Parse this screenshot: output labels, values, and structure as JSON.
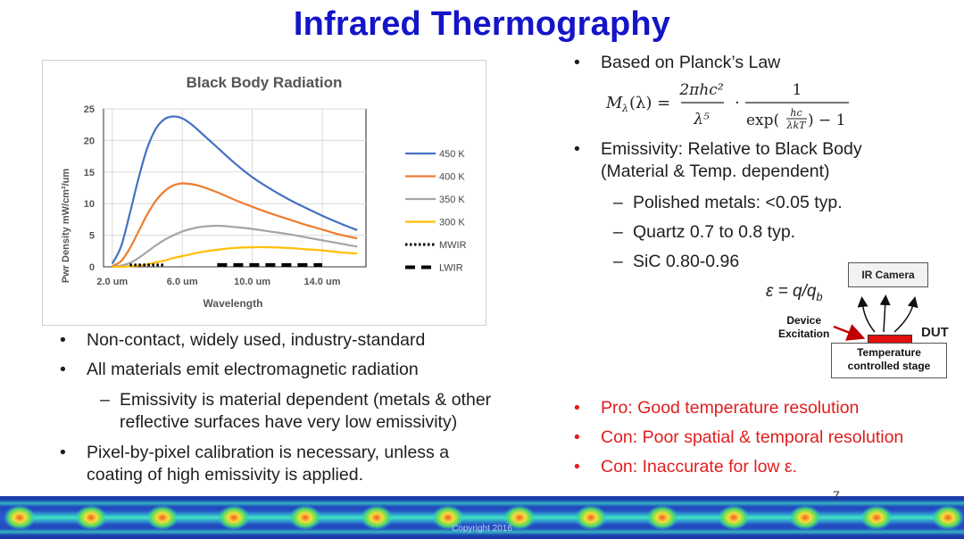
{
  "title": "Infrared Thermography",
  "chart_data": {
    "type": "line",
    "title": "Black Body Radiation",
    "xlabel": "Wavelength",
    "ylabel": "Pwr Density mW/cm²/um",
    "x_tick_labels": [
      "2.0 um",
      "6.0 um",
      "10.0 um",
      "14.0 um"
    ],
    "x_ticks": [
      2,
      6,
      10,
      14
    ],
    "xlim": [
      1.5,
      16.5
    ],
    "ylim": [
      0,
      25
    ],
    "y_ticks": [
      0,
      5,
      10,
      15,
      20,
      25
    ],
    "grid": true,
    "legend_position": "right",
    "x": [
      2.0,
      2.5,
      3.0,
      3.5,
      4.0,
      4.5,
      5.0,
      5.5,
      6.0,
      6.5,
      7.0,
      8.0,
      9.0,
      10.0,
      11.0,
      12.0,
      13.0,
      14.0,
      15.0,
      16.0
    ],
    "series": [
      {
        "name": "450 K",
        "color": "#4472c4",
        "values": [
          0.5,
          3.2,
          8.4,
          14.0,
          18.8,
          21.9,
          23.4,
          23.8,
          23.5,
          22.6,
          21.4,
          18.9,
          16.4,
          14.2,
          12.4,
          10.8,
          9.4,
          8.1,
          6.9,
          5.8
        ]
      },
      {
        "name": "400 K",
        "color": "#ed7d31",
        "values": [
          0.1,
          0.9,
          2.9,
          5.6,
          8.3,
          10.5,
          12.0,
          12.9,
          13.2,
          13.1,
          12.8,
          11.8,
          10.6,
          9.5,
          8.5,
          7.6,
          6.7,
          5.9,
          5.1,
          4.5
        ]
      },
      {
        "name": "350 K",
        "color": "#a5a5a5",
        "values": [
          0.0,
          0.2,
          0.6,
          1.4,
          2.4,
          3.4,
          4.3,
          5.0,
          5.6,
          6.0,
          6.3,
          6.5,
          6.3,
          6.0,
          5.6,
          5.2,
          4.7,
          4.2,
          3.7,
          3.2
        ]
      },
      {
        "name": "300 K",
        "color": "#ffc000",
        "values": [
          0.0,
          0.0,
          0.1,
          0.2,
          0.4,
          0.7,
          1.0,
          1.4,
          1.7,
          2.0,
          2.3,
          2.7,
          3.0,
          3.1,
          3.1,
          3.0,
          2.8,
          2.6,
          2.3,
          2.1
        ]
      }
    ],
    "bands": [
      {
        "name": "MWIR",
        "style": "dotted",
        "x_range": [
          3,
          5
        ],
        "y": 0.3
      },
      {
        "name": "LWIR",
        "style": "dashed",
        "x_range": [
          8,
          14
        ],
        "y": 0.3
      }
    ]
  },
  "formula": {
    "lhs": "M",
    "lhs_sub": "λ",
    "lhs_arg": "(λ) =",
    "num1": "2πhc²",
    "den1": "λ⁵",
    "dot": "·",
    "num2": "1",
    "den2_pre": "exp(",
    "den2_frac_num": "hc",
    "den2_frac_den": "λkT",
    "den2_post": ") − 1"
  },
  "right_bullets": {
    "planck": "Based on Planck’s Law",
    "emissivity_line1": "Emissivity: Relative to Black Body",
    "emissivity_line2": "(Material & Temp. dependent)",
    "sub1": "Polished metals: <0.05 typ.",
    "sub2": "Quartz 0.7 to 0.8 typ.",
    "sub3": "SiC 0.80-0.96"
  },
  "equation": {
    "lhs": "ε = q/q",
    "sub": "b"
  },
  "diagram": {
    "ir_camera": "IR Camera",
    "device_excitation_1": "Device",
    "device_excitation_2": "Excitation",
    "dut": "DUT",
    "stage_1": "Temperature",
    "stage_2": "controlled stage",
    "dut_color": "#e01010"
  },
  "left_bullets": {
    "b1": "Non-contact, widely used, industry-standard",
    "b2": "All materials emit electromagnetic radiation",
    "sub1_line1": "Emissivity is material dependent (metals & other",
    "sub1_line2": "reflective surfaces have very low emissivity)",
    "b3_line1": "Pixel-by-pixel calibration  is necessary, unless a",
    "b3_line2": "coating of high emissivity is applied."
  },
  "pro_con": {
    "pro": "Pro: Good temperature resolution",
    "con1": "Con: Poor spatial & temporal resolution",
    "con2": "Con: Inaccurate for low ε."
  },
  "page_number": "7",
  "copyright": "Copyright 2016"
}
